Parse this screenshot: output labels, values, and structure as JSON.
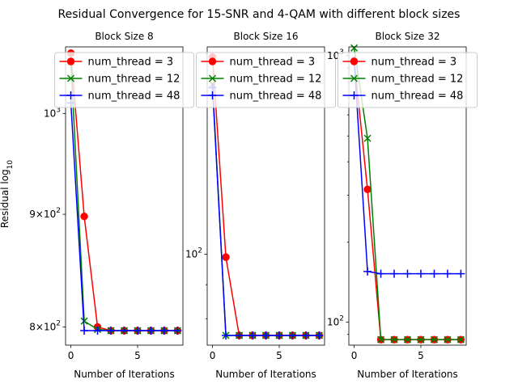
{
  "figure": {
    "title": "Residual Convergence for 15-SNR and 4-QAM with different block sizes",
    "xlabel": "Number of Iterations",
    "ylabel_main": "Residual log",
    "ylabel_sub": "10"
  },
  "colors": {
    "num_thread_3": "#ff0000",
    "num_thread_12": "#008000",
    "num_thread_48": "#0000ff"
  },
  "chart_data": [
    {
      "type": "line",
      "title": "Block Size 8",
      "xlabel": "Number of Iterations",
      "ylabel": "Residual log10",
      "yscale": "log",
      "xlim": [
        -0.4,
        8.4
      ],
      "ylim": [
        785,
        1072
      ],
      "x": [
        0,
        1,
        2,
        3,
        4,
        5,
        6,
        7,
        8
      ],
      "xticks": [
        0,
        5
      ],
      "yticks": [
        {
          "value": 800,
          "mant": "8",
          "exp": "2"
        },
        {
          "value": 900,
          "mant": "9",
          "exp": "2"
        },
        {
          "value": 1000,
          "mant": "",
          "exp": "3"
        }
      ],
      "legend_loc": "upper center",
      "series": [
        {
          "name": "num_thread = 3",
          "marker": "o",
          "color": "#ff0000",
          "values": [
            1065,
            898,
            800,
            797,
            797,
            797,
            797,
            797,
            797
          ]
        },
        {
          "name": "num_thread = 12",
          "marker": "x",
          "color": "#008000",
          "values": [
            1055,
            805,
            798,
            797,
            797,
            797,
            797,
            797,
            797
          ]
        },
        {
          "name": "num_thread = 48",
          "marker": "+",
          "color": "#0000ff",
          "values": [
            1011,
            797,
            797,
            797,
            797,
            797,
            797,
            797,
            797
          ]
        }
      ]
    },
    {
      "type": "line",
      "title": "Block Size 16",
      "xlabel": "Number of Iterations",
      "ylabel": "",
      "yscale": "log",
      "xlim": [
        -0.4,
        8.4
      ],
      "ylim": [
        73,
        205
      ],
      "x": [
        0,
        1,
        2,
        3,
        4,
        5,
        6,
        7,
        8
      ],
      "xticks": [
        0,
        5
      ],
      "yticks": [
        {
          "value": 100,
          "mant": "",
          "exp": "2"
        }
      ],
      "legend_loc": "upper center",
      "series": [
        {
          "name": "num_thread = 3",
          "marker": "o",
          "color": "#ff0000",
          "values": [
            198,
            99,
            75.5,
            75.5,
            75.5,
            75.5,
            75.5,
            75.5,
            75.5
          ]
        },
        {
          "name": "num_thread = 12",
          "marker": "x",
          "color": "#008000",
          "values": [
            180,
            75.5,
            75.5,
            75.5,
            75.5,
            75.5,
            75.5,
            75.5,
            75.5
          ]
        },
        {
          "name": "num_thread = 48",
          "marker": "+",
          "color": "#0000ff",
          "values": [
            178,
            75.5,
            75.5,
            75.5,
            75.5,
            75.5,
            75.5,
            75.5,
            75.5
          ]
        }
      ]
    },
    {
      "type": "line",
      "title": "Block Size 32",
      "xlabel": "Number of Iterations",
      "ylabel": "",
      "yscale": "log",
      "xlim": [
        -0.4,
        8.4
      ],
      "ylim": [
        82,
        1080
      ],
      "x": [
        0,
        1,
        2,
        3,
        4,
        5,
        6,
        7,
        8
      ],
      "xticks": [
        0,
        5
      ],
      "yticks": [
        {
          "value": 100,
          "mant": "",
          "exp": "2"
        },
        {
          "value": 1000,
          "mant": "",
          "exp": "3"
        }
      ],
      "legend_loc": "upper center",
      "series": [
        {
          "name": "num_thread = 3",
          "marker": "o",
          "color": "#ff0000",
          "values": [
            960,
            315,
            86,
            86,
            86,
            86,
            86,
            86,
            86
          ]
        },
        {
          "name": "num_thread = 12",
          "marker": "x",
          "color": "#008000",
          "values": [
            1070,
            490,
            86,
            86,
            86,
            86,
            86,
            86,
            86
          ]
        },
        {
          "name": "num_thread = 48",
          "marker": "+",
          "color": "#0000ff",
          "values": [
            960,
            155,
            152,
            152,
            152,
            152,
            152,
            152,
            152
          ]
        }
      ]
    }
  ]
}
